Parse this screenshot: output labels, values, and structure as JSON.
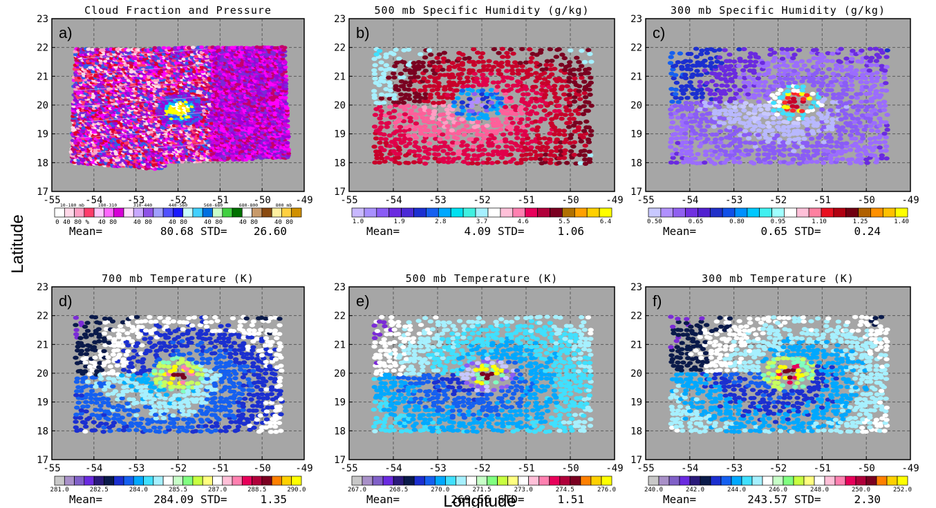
{
  "figure": {
    "xlabel": "Longitude",
    "ylabel": "Latitude",
    "stat_mean_label": "Mean=",
    "stat_std_label": "STD="
  },
  "chart_data": [
    {
      "type": "scatter",
      "panel": "a)",
      "title": "Cloud Fraction and Pressure",
      "xlim": [
        -55,
        -49
      ],
      "ylim": [
        17,
        23
      ],
      "xticks": [
        -55,
        -54,
        -53,
        -52,
        -51,
        -50,
        -49
      ],
      "yticks": [
        17,
        18,
        19,
        20,
        21,
        22,
        23
      ],
      "grid": true,
      "pattern": "swath",
      "colors": [
        "#ffd8e8",
        "#ff9fc4",
        "#ff3b6b",
        "#e0002b",
        "#c4006a",
        "#ff00ff",
        "#d000e0",
        "#9b00d8",
        "#7a2bd6",
        "#3060e8",
        "#00c8ff",
        "#ffff00",
        "#ffd000",
        "#ffffff"
      ],
      "legend": {
        "header": [
          "10-180 mb",
          "180-310",
          "310-440",
          "440-560",
          "560-680",
          "680-800",
          "800 mb"
        ],
        "labels": [
          "0 40 80 %",
          "40 80",
          "40 80",
          "40 80",
          "40 80",
          "40 80",
          "40 80"
        ],
        "colors": [
          "#ffffff",
          "#ffd8e8",
          "#ff9fc4",
          "#ff3b6b",
          "#ffc8ff",
          "#ff66ff",
          "#d600d6",
          "#ffe0ff",
          "#c8a8ff",
          "#8e52e6",
          "#a0a0ff",
          "#5050ff",
          "#1a1aff",
          "#c8ffff",
          "#40d0ff",
          "#0070e0",
          "#c8ffc8",
          "#40d040",
          "#007000",
          "#ffffff",
          "#c89a6a",
          "#8a4a10",
          "#fff0a0",
          "#ffd040",
          "#d09000"
        ]
      },
      "mean": "80.68",
      "std": "26.60"
    },
    {
      "type": "scatter",
      "panel": "b)",
      "title": "500 mb Specific Humidity (g/kg)",
      "xlim": [
        -55,
        -49
      ],
      "ylim": [
        17,
        23
      ],
      "xticks": [
        -55,
        -54,
        -53,
        -52,
        -51,
        -50,
        -49
      ],
      "yticks": [
        17,
        18,
        19,
        20,
        21,
        22,
        23
      ],
      "grid": true,
      "pattern": "spiral",
      "center": [
        -52.1,
        20.05
      ],
      "colors": [
        "#ffffff",
        "#ff9fc4",
        "#ff5f9a",
        "#e0004a",
        "#c8002a",
        "#7a0020",
        "#a6f0ff",
        "#40e0ff",
        "#00c8e8",
        "#00a8ff",
        "#1560f0",
        "#1b2fd0",
        "#8a5cf6",
        "#b08cff"
      ],
      "legend": {
        "ticks": [
          "1.0",
          "1.9",
          "2.8",
          "3.7",
          "4.6",
          "5.5",
          "6.4"
        ],
        "colors": [
          "#c8b8ff",
          "#a890ff",
          "#8a5cf6",
          "#6a2ae0",
          "#4b2ad6",
          "#1b2fd0",
          "#1560f0",
          "#00a8ff",
          "#00e0f0",
          "#40f0e0",
          "#a6f0ff",
          "#ffffff",
          "#ffc0d8",
          "#ff80b0",
          "#e8005a",
          "#b0003a",
          "#7a0020",
          "#b07000",
          "#ffa000",
          "#ffd000",
          "#ffff00"
        ]
      },
      "mean": "4.09",
      "std": "1.06"
    },
    {
      "type": "scatter",
      "panel": "c)",
      "title": "300 mb Specific Humidity (g/kg)",
      "xlim": [
        -55,
        -49
      ],
      "ylim": [
        17,
        23
      ],
      "xticks": [
        -55,
        -54,
        -53,
        -52,
        -51,
        -50,
        -49
      ],
      "yticks": [
        17,
        18,
        19,
        20,
        21,
        22,
        23
      ],
      "grid": true,
      "pattern": "spiral",
      "center": [
        -51.6,
        20.1
      ],
      "colors": [
        "#c8c8ff",
        "#c8c8ff",
        "#b8b8ff",
        "#8a5cf6",
        "#9b6cff",
        "#6a2ae0",
        "#1b2fd0",
        "#1560f0",
        "#40e0ff",
        "#ffffff",
        "#ffff00",
        "#ff2a2a",
        "#c8002a"
      ],
      "legend": {
        "ticks": [
          "0.50",
          "0.65",
          "0.80",
          "0.95",
          "1.10",
          "1.25",
          "1.40"
        ],
        "colors": [
          "#c8c8ff",
          "#b090ff",
          "#9060f0",
          "#7030e0",
          "#5020d0",
          "#2030c8",
          "#1050e8",
          "#0090ff",
          "#00c8ff",
          "#40f0f0",
          "#a0ffff",
          "#ffffff",
          "#ffc0d8",
          "#ff80a0",
          "#e81020",
          "#b00010",
          "#700010",
          "#b06000",
          "#ff9000",
          "#ffc000",
          "#ffff00"
        ]
      },
      "mean": "0.65",
      "std": "0.24"
    },
    {
      "type": "scatter",
      "panel": "d)",
      "title": "700 mb Temperature (K)",
      "xlim": [
        -55,
        -49
      ],
      "ylim": [
        17,
        23
      ],
      "xticks": [
        -55,
        -54,
        -53,
        -52,
        -51,
        -50,
        -49
      ],
      "yticks": [
        17,
        18,
        19,
        20,
        21,
        22,
        23
      ],
      "grid": true,
      "pattern": "spiral",
      "center": [
        -52.0,
        19.95
      ],
      "colors": [
        "#40e0ff",
        "#00b0ff",
        "#a6f0ff",
        "#1560f0",
        "#1b2fd0",
        "#ffffff",
        "#0a1a4a",
        "#7a2bd6",
        "#80ffc0",
        "#c8ff60",
        "#ffff00",
        "#ff80b0",
        "#7a0020"
      ],
      "legend": {
        "ticks": [
          "281.0",
          "282.5",
          "284.0",
          "285.5",
          "287.0",
          "288.5",
          "290.0"
        ],
        "colors": [
          "#c8c8c8",
          "#a890c8",
          "#8060c8",
          "#6a2ae0",
          "#2a1a7a",
          "#0a1a4a",
          "#1b2fd0",
          "#1560f0",
          "#00a8ff",
          "#40e0ff",
          "#a6f0ff",
          "#ffffff",
          "#c8ffc8",
          "#80ff80",
          "#c8ff40",
          "#ffff80",
          "#ffffff",
          "#ffc0d8",
          "#ff80b0",
          "#e8005a",
          "#b0003a",
          "#7a0020",
          "#ff8000",
          "#ffd000",
          "#ffff00"
        ]
      },
      "mean": "284.09",
      "std": "1.35"
    },
    {
      "type": "scatter",
      "panel": "e)",
      "title": "500 mb Temperature (K)",
      "xlim": [
        -55,
        -49
      ],
      "ylim": [
        17,
        23
      ],
      "xticks": [
        -55,
        -54,
        -53,
        -52,
        -51,
        -50,
        -49
      ],
      "yticks": [
        17,
        18,
        19,
        20,
        21,
        22,
        23
      ],
      "grid": true,
      "pattern": "spiral",
      "center": [
        -51.85,
        19.95
      ],
      "colors": [
        "#0a1a4a",
        "#1b2fd0",
        "#1560f0",
        "#00a8ff",
        "#40e0ff",
        "#a6f0ff",
        "#ffffff",
        "#7a2bd6",
        "#8a5cf6",
        "#c8c8ff",
        "#80ffc0",
        "#ffff00",
        "#7a0020"
      ],
      "legend": {
        "ticks": [
          "267.0",
          "268.5",
          "270.0",
          "271.5",
          "273.0",
          "274.5",
          "276.0"
        ],
        "colors": [
          "#c8c8c8",
          "#a890c8",
          "#8060c8",
          "#6a2ae0",
          "#2a1a7a",
          "#0a1a4a",
          "#1b2fd0",
          "#1560f0",
          "#00a8ff",
          "#40e0ff",
          "#a6f0ff",
          "#ffffff",
          "#c8ffc8",
          "#80ff80",
          "#c8ff40",
          "#ffff80",
          "#ffffff",
          "#ffc0d8",
          "#ff80b0",
          "#e8005a",
          "#b0003a",
          "#7a0020",
          "#ff8000",
          "#ffd000",
          "#ffff00"
        ]
      },
      "mean": "269.56",
      "std": "1.51"
    },
    {
      "type": "scatter",
      "panel": "f)",
      "title": "300 mb Temperature (K)",
      "xlim": [
        -55,
        -49
      ],
      "ylim": [
        17,
        23
      ],
      "xticks": [
        -55,
        -54,
        -53,
        -52,
        -51,
        -50,
        -49
      ],
      "yticks": [
        17,
        18,
        19,
        20,
        21,
        22,
        23
      ],
      "grid": true,
      "pattern": "spiral",
      "center": [
        -51.75,
        20.0
      ],
      "colors": [
        "#40e0ff",
        "#1560f0",
        "#1b2fd0",
        "#00a8ff",
        "#a6f0ff",
        "#ffffff",
        "#0a1a4a",
        "#7a2bd6",
        "#80ffc0",
        "#c8ff60",
        "#ffff00",
        "#e8005a",
        "#7a0020"
      ],
      "legend": {
        "ticks": [
          "240.0",
          "242.0",
          "244.0",
          "246.0",
          "248.0",
          "250.0",
          "252.0"
        ],
        "colors": [
          "#c8c8c8",
          "#a890c8",
          "#8060c8",
          "#6a2ae0",
          "#2a1a7a",
          "#0a1a4a",
          "#1b2fd0",
          "#1560f0",
          "#00a8ff",
          "#40e0ff",
          "#a6f0ff",
          "#ffffff",
          "#c8ffc8",
          "#80ff80",
          "#c8ff40",
          "#ffff80",
          "#ffffff",
          "#ffc0d8",
          "#ff80b0",
          "#e8005a",
          "#b0003a",
          "#7a0020",
          "#ff8000",
          "#ffd000",
          "#ffff00"
        ]
      },
      "mean": "243.57",
      "std": "2.30"
    }
  ]
}
